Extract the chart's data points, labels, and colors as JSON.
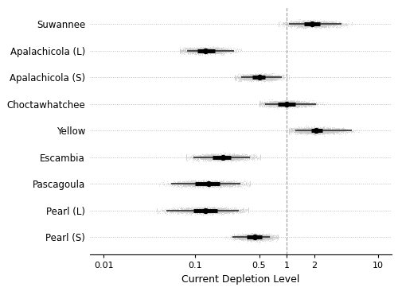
{
  "rivers": [
    "Suwannee",
    "Apalachicola (L)",
    "Apalachicola (S)",
    "Choctawhatchee",
    "Yellow",
    "Escambia",
    "Pascagoula",
    "Pearl (L)",
    "Pearl (S)"
  ],
  "median": [
    1.9,
    0.13,
    0.5,
    1.0,
    2.1,
    0.2,
    0.14,
    0.13,
    0.45
  ],
  "ci50_lo": [
    1.55,
    0.105,
    0.42,
    0.8,
    1.85,
    0.155,
    0.1,
    0.095,
    0.37
  ],
  "ci50_hi": [
    2.3,
    0.165,
    0.58,
    1.25,
    2.45,
    0.245,
    0.185,
    0.175,
    0.535
  ],
  "ci90_lo": [
    1.05,
    0.082,
    0.32,
    0.58,
    1.25,
    0.095,
    0.055,
    0.048,
    0.255
  ],
  "ci90_hi": [
    4.0,
    0.265,
    0.88,
    2.1,
    5.2,
    0.4,
    0.31,
    0.3,
    0.65
  ],
  "scatter_lo": [
    0.82,
    0.068,
    0.27,
    0.5,
    1.05,
    0.08,
    0.04,
    0.038,
    0.215
  ],
  "scatter_hi": [
    5.2,
    0.32,
    1.05,
    2.8,
    7.0,
    0.52,
    0.4,
    0.38,
    0.8
  ],
  "vline_x": 1.0,
  "xlabel": "Current Depletion Level",
  "xticks": [
    0.01,
    0.1,
    0.5,
    1,
    2,
    10
  ],
  "xtick_labels": [
    "0.01",
    "0.1",
    "0.5",
    "1",
    "2",
    "10"
  ],
  "xlim_lo": 0.007,
  "xlim_hi": 14.0,
  "dot_color": "black",
  "ci50_color": "black",
  "ci90_color": "#444444",
  "scatter_color": "#c8c8c8",
  "background_color": "white",
  "n_scatter": 3000,
  "scatter_alpha": 0.45,
  "scatter_size": 0.4,
  "scatter_jitter": 0.055,
  "ci50_lw": 3.5,
  "ci90_lw": 1.4,
  "median_size": 28
}
